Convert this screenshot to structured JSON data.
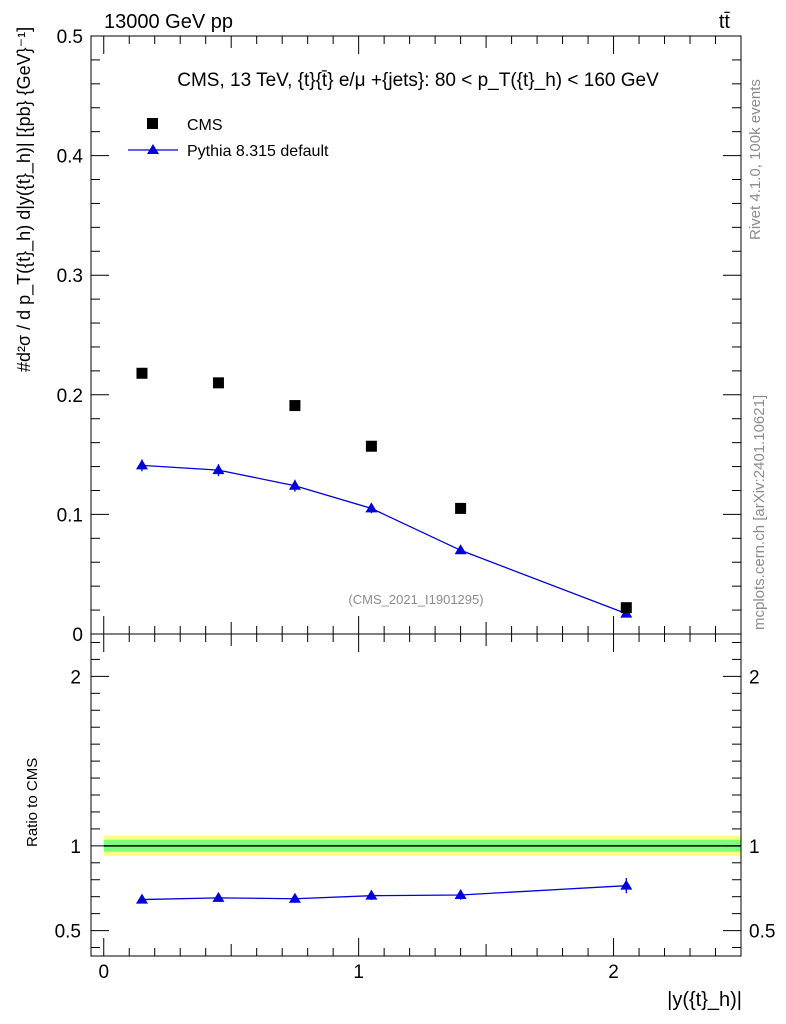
{
  "header": {
    "left": "13000 GeV pp",
    "right": "tt̄"
  },
  "side": {
    "rivet": "Rivet 4.1.0,  100k events",
    "mcplots": "mcplots.cern.ch [arXiv:2401.10621]"
  },
  "colors": {
    "data": "#000000",
    "mc": "#0000dd",
    "band_inner": "#7dff7d",
    "band_outer": "#ffff80"
  },
  "chart_data": [
    {
      "type": "scatter",
      "title": "CMS, 13 TeV, {t}{t̄} e/μ +{jets}: 80 <  p_T({t}_h) < 160 GeV",
      "ylabel": "#d²σ / d p_T({t}_h) d|y({t}_h)| [{pb} {GeV}⁻¹]",
      "xlabel": "|y({t}_h)|",
      "analysis_tag": "(CMS_2021_I1901295)",
      "xlim": [
        -0.05,
        2.5
      ],
      "ylim": [
        0,
        0.5
      ],
      "yticks": [
        0,
        0.1,
        0.2,
        0.3,
        0.4,
        0.5
      ],
      "ytick_labels": [
        "0",
        "0.1",
        "0.2",
        "0.3",
        "0.4",
        "0.5"
      ],
      "xticks": [
        0,
        1,
        2
      ],
      "xtick_labels": [
        "0",
        "1",
        "2"
      ],
      "legend": [
        "CMS",
        "Pythia 8.315 default"
      ],
      "series": [
        {
          "name": "CMS",
          "x": [
            0.15,
            0.45,
            0.75,
            1.05,
            1.4,
            2.05
          ],
          "y": [
            0.218,
            0.21,
            0.191,
            0.157,
            0.105,
            0.022
          ]
        },
        {
          "name": "Pythia 8.315 default",
          "x": [
            0.15,
            0.45,
            0.75,
            1.05,
            1.4,
            2.05
          ],
          "y": [
            0.141,
            0.137,
            0.124,
            0.105,
            0.07,
            0.017
          ],
          "err": [
            0.005,
            0.005,
            0.005,
            0.004,
            0.003,
            0.003
          ]
        }
      ]
    },
    {
      "type": "line",
      "ylabel": "Ratio to CMS",
      "ylim": [
        0.35,
        2.25
      ],
      "yticks": [
        0.5,
        1,
        2
      ],
      "ytick_labels": [
        "0.5",
        "1",
        "2"
      ],
      "band_inner": 0.035,
      "band_outer": 0.06,
      "series": [
        {
          "name": "Pythia 8.315 default",
          "x": [
            0.15,
            0.45,
            0.75,
            1.05,
            1.4,
            2.05
          ],
          "y": [
            0.683,
            0.693,
            0.688,
            0.706,
            0.71,
            0.765
          ],
          "err": [
            0.022,
            0.022,
            0.024,
            0.025,
            0.028,
            0.045
          ]
        }
      ]
    }
  ]
}
